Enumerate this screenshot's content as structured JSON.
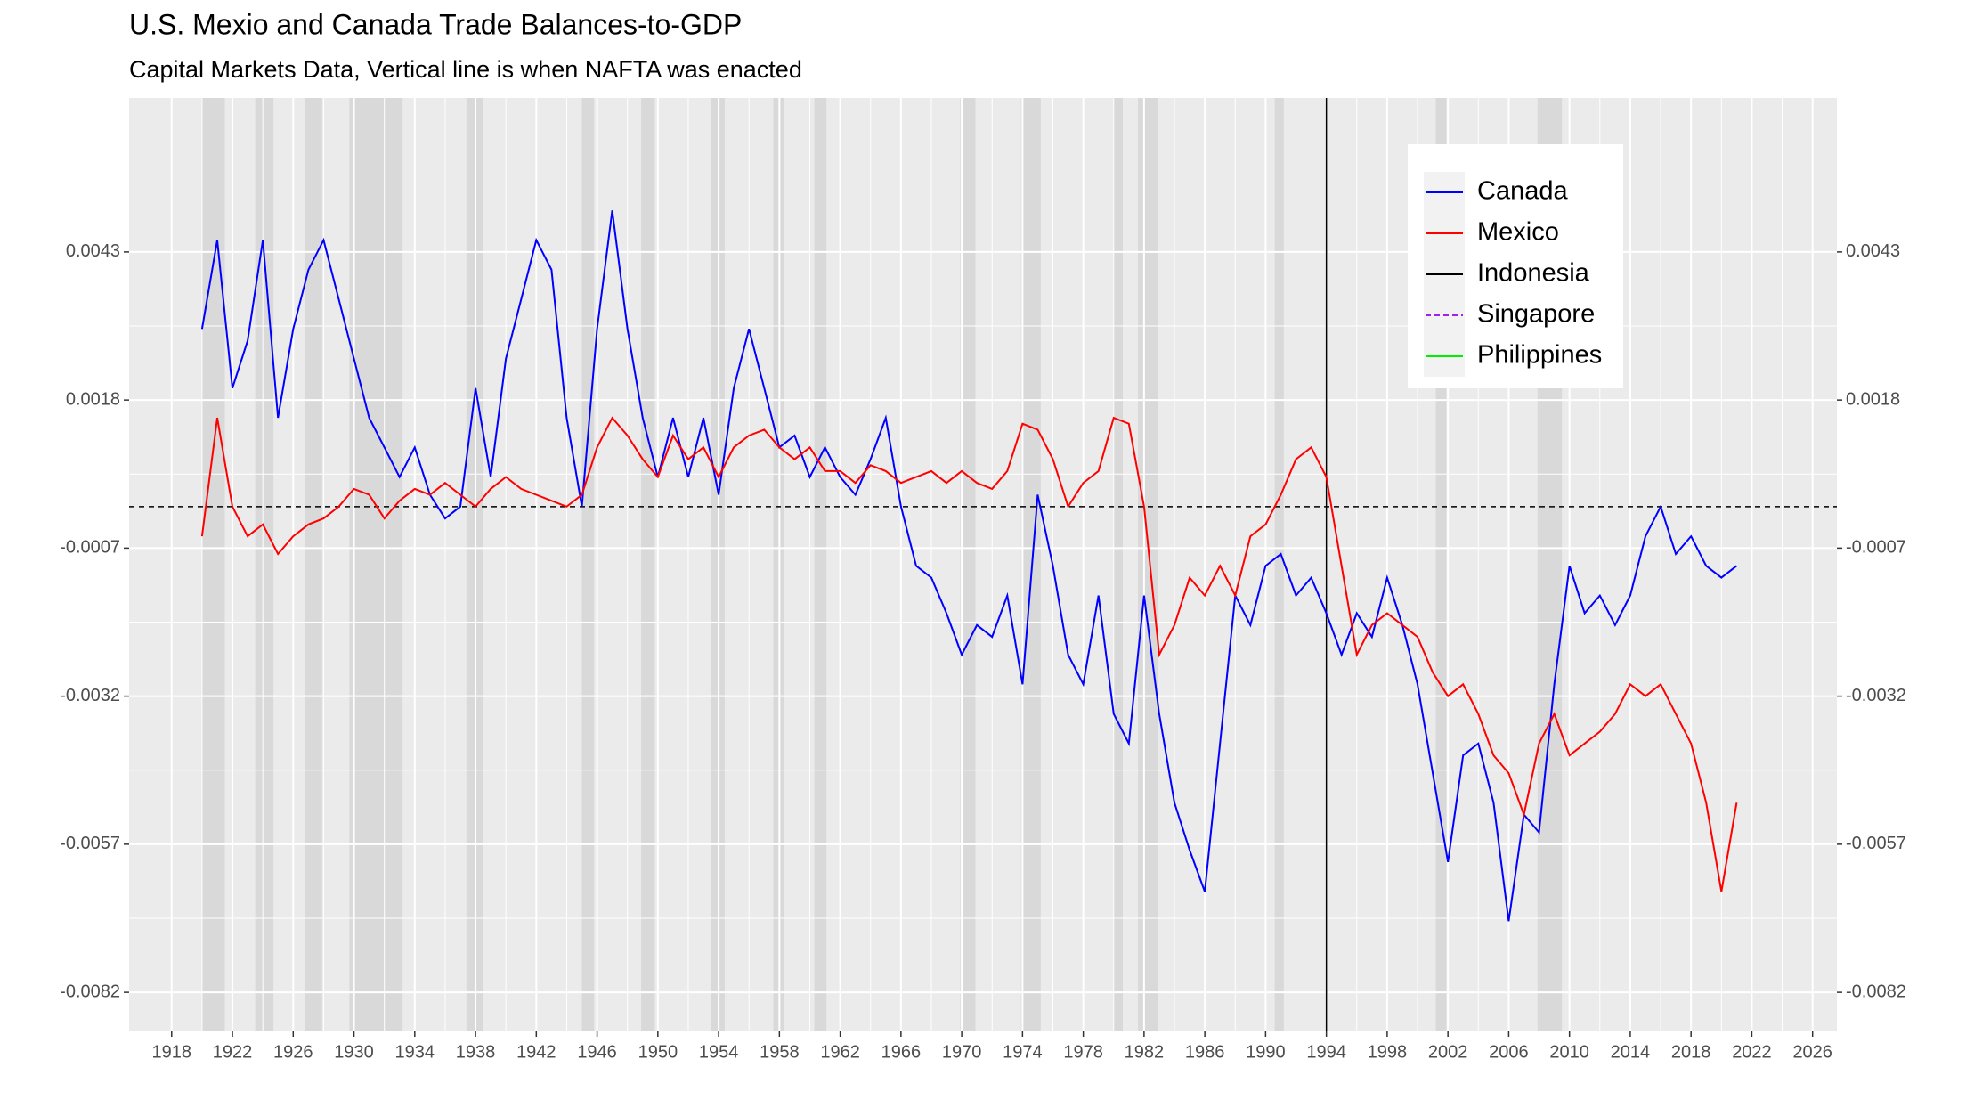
{
  "chart_data": {
    "type": "line",
    "title": "U.S. Mexio and Canada Trade Balances-to-GDP",
    "subtitle": "Capital Markets Data, Vertical line is when NAFTA was enacted",
    "x": [
      1920,
      1921,
      1922,
      1923,
      1924,
      1925,
      1926,
      1927,
      1928,
      1929,
      1930,
      1931,
      1932,
      1933,
      1934,
      1935,
      1936,
      1937,
      1938,
      1939,
      1940,
      1941,
      1942,
      1943,
      1944,
      1945,
      1946,
      1947,
      1948,
      1949,
      1950,
      1951,
      1952,
      1953,
      1954,
      1955,
      1956,
      1957,
      1958,
      1959,
      1960,
      1961,
      1962,
      1963,
      1964,
      1965,
      1966,
      1967,
      1968,
      1969,
      1970,
      1971,
      1972,
      1973,
      1974,
      1975,
      1976,
      1977,
      1978,
      1979,
      1980,
      1981,
      1982,
      1983,
      1984,
      1985,
      1986,
      1987,
      1988,
      1989,
      1990,
      1991,
      1992,
      1993,
      1994,
      1995,
      1996,
      1997,
      1998,
      1999,
      2000,
      2001,
      2002,
      2003,
      2004,
      2005,
      2006,
      2007,
      2008,
      2009,
      2010,
      2011,
      2012,
      2013,
      2014,
      2015,
      2016,
      2017,
      2018,
      2019,
      2020,
      2021
    ],
    "series": [
      {
        "name": "Canada",
        "color": "#0000ff",
        "dashed": false,
        "values": [
          0.003,
          0.0045,
          0.002,
          0.0028,
          0.0045,
          0.0015,
          0.003,
          0.004,
          0.0045,
          0.0035,
          0.0025,
          0.0015,
          0.001,
          0.0005,
          0.001,
          0.0002,
          -0.0002,
          0.0,
          0.002,
          0.0005,
          0.0025,
          0.0035,
          0.0045,
          0.004,
          0.0015,
          0.0,
          0.003,
          0.005,
          0.003,
          0.0015,
          0.0005,
          0.0015,
          0.0005,
          0.0015,
          0.0002,
          0.002,
          0.003,
          0.002,
          0.001,
          0.0012,
          0.0005,
          0.001,
          0.0005,
          0.0002,
          0.0008,
          0.0015,
          0.0,
          -0.001,
          -0.0012,
          -0.0018,
          -0.0025,
          -0.002,
          -0.0022,
          -0.0015,
          -0.003,
          0.0002,
          -0.001,
          -0.0025,
          -0.003,
          -0.0015,
          -0.0035,
          -0.004,
          -0.0015,
          -0.0035,
          -0.005,
          -0.0058,
          -0.0065,
          -0.004,
          -0.0015,
          -0.002,
          -0.001,
          -0.0008,
          -0.0015,
          -0.0012,
          -0.0018,
          -0.0025,
          -0.0018,
          -0.0022,
          -0.0012,
          -0.002,
          -0.003,
          -0.0045,
          -0.006,
          -0.0042,
          -0.004,
          -0.005,
          -0.007,
          -0.0052,
          -0.0055,
          -0.003,
          -0.001,
          -0.0018,
          -0.0015,
          -0.002,
          -0.0015,
          -0.0005,
          0.0,
          -0.0008,
          -0.0005,
          -0.001,
          -0.0012,
          -0.001
        ]
      },
      {
        "name": "Mexico",
        "color": "#ff0000",
        "dashed": false,
        "values": [
          -0.0005,
          0.0015,
          0.0,
          -0.0005,
          -0.0003,
          -0.0008,
          -0.0005,
          -0.0003,
          -0.0002,
          0.0,
          0.0003,
          0.0002,
          -0.0002,
          0.0001,
          0.0003,
          0.0002,
          0.0004,
          0.0002,
          0.0,
          0.0003,
          0.0005,
          0.0003,
          0.0002,
          0.0001,
          0.0,
          0.0002,
          0.001,
          0.0015,
          0.0012,
          0.0008,
          0.0005,
          0.0012,
          0.0008,
          0.001,
          0.0005,
          0.001,
          0.0012,
          0.0013,
          0.001,
          0.0008,
          0.001,
          0.0006,
          0.0006,
          0.0004,
          0.0007,
          0.0006,
          0.0004,
          0.0005,
          0.0006,
          0.0004,
          0.0006,
          0.0004,
          0.0003,
          0.0006,
          0.0014,
          0.0013,
          0.0008,
          0.0,
          0.0004,
          0.0006,
          0.0015,
          0.0014,
          0.0,
          -0.0025,
          -0.002,
          -0.0012,
          -0.0015,
          -0.001,
          -0.0015,
          -0.0005,
          -0.0003,
          0.0002,
          0.0008,
          0.001,
          0.0005,
          -0.001,
          -0.0025,
          -0.002,
          -0.0018,
          -0.002,
          -0.0022,
          -0.0028,
          -0.0032,
          -0.003,
          -0.0035,
          -0.0042,
          -0.0045,
          -0.0052,
          -0.004,
          -0.0035,
          -0.0042,
          -0.004,
          -0.0038,
          -0.0035,
          -0.003,
          -0.0032,
          -0.003,
          -0.0035,
          -0.004,
          -0.005,
          -0.0065,
          -0.005
        ]
      },
      {
        "name": "Indonesia",
        "color": "#000000",
        "dashed": false,
        "values": [
          null,
          null,
          null,
          null,
          null,
          null,
          null,
          null,
          null,
          null,
          null,
          null,
          null,
          null,
          null,
          null,
          null,
          null,
          null,
          null,
          null,
          null,
          null,
          null,
          null,
          null,
          null,
          null,
          null,
          null,
          null,
          null,
          null,
          null,
          null,
          null,
          null,
          null,
          null,
          null,
          null,
          null,
          null,
          null,
          null,
          null,
          null,
          null,
          null,
          null,
          null,
          null,
          null,
          null,
          null,
          null,
          null,
          null,
          null,
          null,
          null,
          null,
          null,
          null,
          null,
          null,
          null,
          null,
          null,
          null,
          null,
          null,
          null,
          null,
          null,
          null,
          null,
          null,
          null,
          null,
          null,
          null,
          null,
          null,
          null,
          null,
          null,
          null,
          null,
          null,
          null,
          null,
          null,
          null,
          null,
          null,
          null,
          null,
          null,
          null,
          null,
          null
        ]
      },
      {
        "name": "Singapore",
        "color": "#a020f0",
        "dashed": true,
        "values": [
          null,
          null,
          null,
          null,
          null,
          null,
          null,
          null,
          null,
          null,
          null,
          null,
          null,
          null,
          null,
          null,
          null,
          null,
          null,
          null,
          null,
          null,
          null,
          null,
          null,
          null,
          null,
          null,
          null,
          null,
          null,
          null,
          null,
          null,
          null,
          null,
          null,
          null,
          null,
          null,
          null,
          null,
          null,
          null,
          null,
          null,
          null,
          null,
          null,
          null,
          null,
          null,
          null,
          null,
          null,
          null,
          null,
          null,
          null,
          null,
          null,
          null,
          null,
          null,
          null,
          null,
          null,
          null,
          null,
          null,
          null,
          null,
          null,
          null,
          null,
          null,
          null,
          null,
          null,
          null,
          null,
          null,
          null,
          null,
          null,
          null,
          null,
          null,
          null,
          null,
          null,
          null,
          null,
          null,
          null,
          null,
          null,
          null,
          null,
          null,
          null,
          null
        ]
      },
      {
        "name": "Philippines",
        "color": "#00ee00",
        "dashed": false,
        "values": [
          null,
          null,
          null,
          null,
          null,
          null,
          null,
          null,
          null,
          null,
          null,
          null,
          null,
          null,
          null,
          null,
          null,
          null,
          null,
          null,
          null,
          null,
          null,
          null,
          null,
          null,
          null,
          null,
          null,
          null,
          null,
          null,
          null,
          null,
          null,
          null,
          null,
          null,
          null,
          null,
          null,
          null,
          null,
          null,
          null,
          null,
          null,
          null,
          null,
          null,
          null,
          null,
          null,
          null,
          null,
          null,
          null,
          null,
          null,
          null,
          null,
          null,
          null,
          null,
          null,
          null,
          null,
          null,
          null,
          null,
          null,
          null,
          null,
          null,
          null,
          null,
          null,
          null,
          null,
          null,
          null,
          null,
          null,
          null,
          null,
          null,
          null,
          null,
          null,
          null,
          null,
          null,
          null,
          null,
          null,
          null,
          null,
          null,
          null,
          null,
          null,
          null
        ]
      }
    ],
    "shaded_periods": [
      [
        1920,
        1921.5
      ],
      [
        1923.5,
        1924.7
      ],
      [
        1926.8,
        1927.9
      ],
      [
        1929.7,
        1933.2
      ],
      [
        1937.4,
        1938.5
      ],
      [
        1945,
        1945.8
      ],
      [
        1948.9,
        1949.8
      ],
      [
        1953.5,
        1954.4
      ],
      [
        1957.6,
        1958.3
      ],
      [
        1960.3,
        1961.1
      ],
      [
        1969.9,
        1970.9
      ],
      [
        1973.9,
        1975.2
      ],
      [
        1980,
        1980.6
      ],
      [
        1981.6,
        1982.9
      ],
      [
        1990.6,
        1991.2
      ],
      [
        2001.2,
        2001.9
      ],
      [
        2007.9,
        2009.5
      ]
    ],
    "hline": 0,
    "vline": 1994,
    "xlim": [
      1915.2,
      2027.6
    ],
    "xticks": [
      1918,
      1922,
      1926,
      1930,
      1934,
      1938,
      1942,
      1946,
      1950,
      1954,
      1958,
      1962,
      1966,
      1970,
      1974,
      1978,
      1982,
      1986,
      1990,
      1994,
      1998,
      2002,
      2006,
      2010,
      2014,
      2018,
      2022,
      2026
    ],
    "ylim": [
      -0.00886,
      0.0069
    ],
    "yticks": [
      0.0043,
      0.0018,
      -0.0007,
      -0.0032,
      -0.0057,
      -0.0082
    ],
    "y2lim": [
      -0.00886,
      0.0069
    ],
    "y2ticks": [
      0.0043,
      0.0018,
      -0.0007,
      -0.0032,
      -0.0057,
      -0.0082
    ],
    "grid": true,
    "legend_position": "top-right"
  }
}
